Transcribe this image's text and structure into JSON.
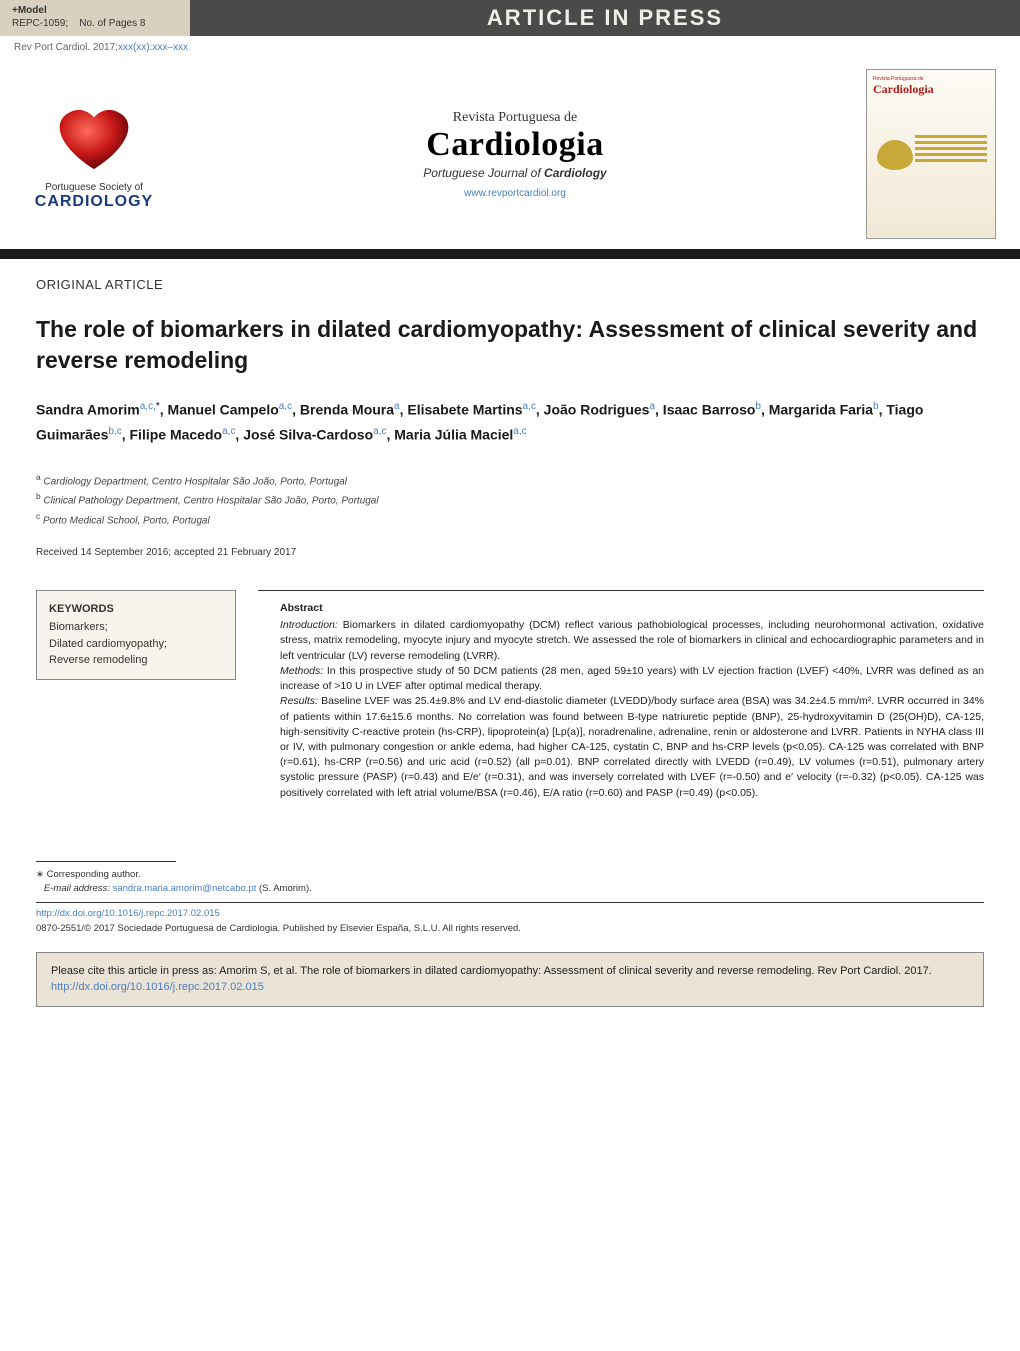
{
  "banner": {
    "model_prefix": "+Model",
    "model_ref": "REPC-1059;",
    "pages_label": "No. of Pages 8",
    "aip": "ARTICLE IN PRESS"
  },
  "citation": {
    "journal_abbrev": "Rev Port Cardiol. 2017;",
    "vol_pp": "xxx(xx)",
    "sep": ":",
    "range": "xxx–xxx"
  },
  "header": {
    "society_line1": "Portuguese Society of",
    "society_line2": "CARDIOLOGY",
    "pt_sub": "Revista Portuguesa de",
    "pt_main": "Cardiologia",
    "en_sub_prefix": "Portuguese Journal of ",
    "en_sub_strong": "Cardiology",
    "url": "www.revportcardiol.org",
    "cover_title_small": "Revista Portuguesa de",
    "cover_title": "Cardiologia"
  },
  "article": {
    "type": "ORIGINAL ARTICLE",
    "title": "The role of biomarkers in dilated cardiomyopathy: Assessment of clinical severity and reverse remodeling"
  },
  "authors_html": "Sandra Amorim<sup>a,c,</sup><sup class=\"star\">*</sup>, Manuel Campelo<sup>a,c</sup>, Brenda Moura<sup>a</sup>, Elisabete Martins<sup>a,c</sup>, João Rodrigues<sup>a</sup>, Isaac Barroso<sup>b</sup>, Margarida Faria<sup>b</sup>, Tiago Guimarães<sup>b,c</sup>, Filipe Macedo<sup>a,c</sup>, José Silva-Cardoso<sup>a,c</sup>, Maria Júlia Maciel<sup>a,c</sup>",
  "affiliations": [
    {
      "sup": "a",
      "text": "Cardiology Department, Centro Hospitalar São João, Porto, Portugal"
    },
    {
      "sup": "b",
      "text": "Clinical Pathology Department, Centro Hospitalar São João, Porto, Portugal"
    },
    {
      "sup": "c",
      "text": "Porto Medical School, Porto, Portugal"
    }
  ],
  "received": "Received 14 September 2016; accepted 21 February 2017",
  "keywords": {
    "head": "KEYWORDS",
    "items": [
      "Biomarkers;",
      "Dilated cardiomyopathy;",
      "Reverse remodeling"
    ]
  },
  "abstract": {
    "head": "Abstract",
    "intro_label": "Introduction:",
    "intro_text": " Biomarkers in dilated cardiomyopathy (DCM) reflect various pathobiological processes, including neurohormonal activation, oxidative stress, matrix remodeling, myocyte injury and myocyte stretch. We assessed the role of biomarkers in clinical and echocardiographic parameters and in left ventricular (LV) reverse remodeling (LVRR).",
    "methods_label": "Methods:",
    "methods_text": " In this prospective study of 50 DCM patients (28 men, aged 59±10 years) with LV ejection fraction (LVEF) <40%, LVRR was defined as an increase of >10 U in LVEF after optimal medical therapy.",
    "results_label": "Results:",
    "results_text": " Baseline LVEF was 25.4±9.8% and LV end-diastolic diameter (LVEDD)/body surface area (BSA) was 34.2±4.5 mm/m². LVRR occurred in 34% of patients within 17.6±15.6 months. No correlation was found between B-type natriuretic peptide (BNP), 25-hydroxyvitamin D (25(OH)D), CA-125, high-sensitivity C-reactive protein (hs-CRP), lipoprotein(a) [Lp(a)], noradrenaline, adrenaline, renin or aldosterone and LVRR. Patients in NYHA class III or IV, with pulmonary congestion or ankle edema, had higher CA-125, cystatin C, BNP and hs-CRP levels (p<0.05). CA-125 was correlated with BNP (r=0.61), hs-CRP (r=0.56) and uric acid (r=0.52) (all p=0.01). BNP correlated directly with LVEDD (r=0.49), LV volumes (r=0.51), pulmonary artery systolic pressure (PASP) (r=0.43) and E/e′ (r=0.31), and was inversely correlated with LVEF (r=-0.50) and e′ velocity (r=-0.32) (p<0.05). CA-125 was positively correlated with left atrial volume/BSA (r=0.46), E/A ratio (r=0.60) and PASP (r=0.49) (p<0.05)."
  },
  "footer": {
    "corr_label": "Corresponding author.",
    "email_label": "E-mail address:",
    "email": "sandra.maria.amorim@netcabo.pt",
    "email_name": " (S. Amorim).",
    "doi_url": "http://dx.doi.org/10.1016/j.repc.2017.02.015",
    "copyright": "0870-2551/© 2017 Sociedade Portuguesa de Cardiologia. Published by Elsevier España, S.L.U. All rights reserved.",
    "cite_text_prefix": "Please cite this article in press as: Amorim S, et al. The role of biomarkers in dilated cardiomyopathy: Assessment of clinical severity and reverse remodeling. Rev Port Cardiol. 2017. ",
    "cite_doi": "http://dx.doi.org/10.1016/j.repc.2017.02.015"
  },
  "colors": {
    "link": "#4a7fbf",
    "banner_bg": "#4a4a4a",
    "banner_model_bg": "#d9d0bf",
    "rule": "#1a1a1a",
    "box_bg": "#f7f3ed",
    "cite_box_bg": "#eae3d6",
    "heart_red": "#b31b1b",
    "society_blue": "#1a3b7a"
  }
}
